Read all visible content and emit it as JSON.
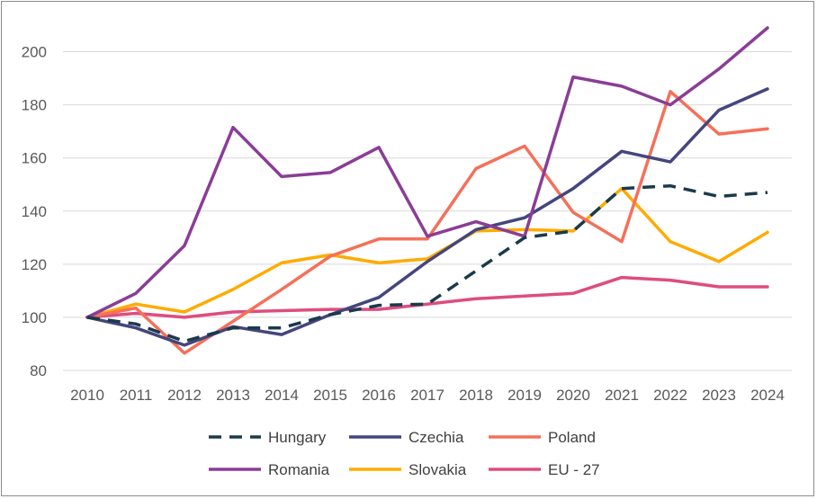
{
  "chart_data": {
    "type": "line",
    "title": "",
    "xlabel": "",
    "ylabel": "",
    "ylim": [
      80,
      210
    ],
    "y_ticks": [
      80,
      100,
      120,
      140,
      160,
      180,
      200
    ],
    "grid": "horizontal",
    "legend_position": "bottom",
    "categories": [
      "2010",
      "2011",
      "2012",
      "2013",
      "2014",
      "2015",
      "2016",
      "2017",
      "2018",
      "2019",
      "2020",
      "2021",
      "2022",
      "2023",
      "2024"
    ],
    "series": [
      {
        "name": "Hungary",
        "color": "#1b3a4b",
        "dashed": true,
        "values": [
          100,
          97.5,
          91,
          96,
          96,
          101,
          104.5,
          105,
          117.5,
          130,
          132.5,
          148.5,
          149.5,
          145.5,
          147
        ]
      },
      {
        "name": "Czechia",
        "color": "#44467d",
        "dashed": false,
        "values": [
          100,
          96,
          89.5,
          96.5,
          93.5,
          101,
          107.5,
          121,
          133,
          137.5,
          148.5,
          162.5,
          158.5,
          178,
          186
        ]
      },
      {
        "name": "Poland",
        "color": "#f5705a",
        "dashed": false,
        "values": [
          100,
          103.5,
          86.5,
          98.5,
          110.5,
          123,
          129.5,
          129.5,
          156,
          164.5,
          139.5,
          128.5,
          185,
          169,
          171
        ]
      },
      {
        "name": "Romania",
        "color": "#8a3d96",
        "dashed": false,
        "values": [
          100,
          109,
          127,
          171.5,
          153,
          154.5,
          164,
          130.5,
          136,
          130.5,
          190.5,
          187,
          180,
          193.5,
          209
        ]
      },
      {
        "name": "Slovakia",
        "color": "#ffab00",
        "dashed": false,
        "values": [
          100,
          105,
          102,
          110.5,
          120.5,
          123.5,
          120.5,
          122,
          132.5,
          133,
          132.5,
          148.5,
          128.5,
          121,
          132
        ]
      },
      {
        "name": "EU - 27",
        "color": "#de4d7f",
        "dashed": false,
        "values": [
          100,
          101.5,
          100,
          102,
          102.5,
          103,
          103,
          105,
          107,
          108,
          109,
          115,
          114,
          111.5,
          111.5
        ]
      }
    ]
  }
}
